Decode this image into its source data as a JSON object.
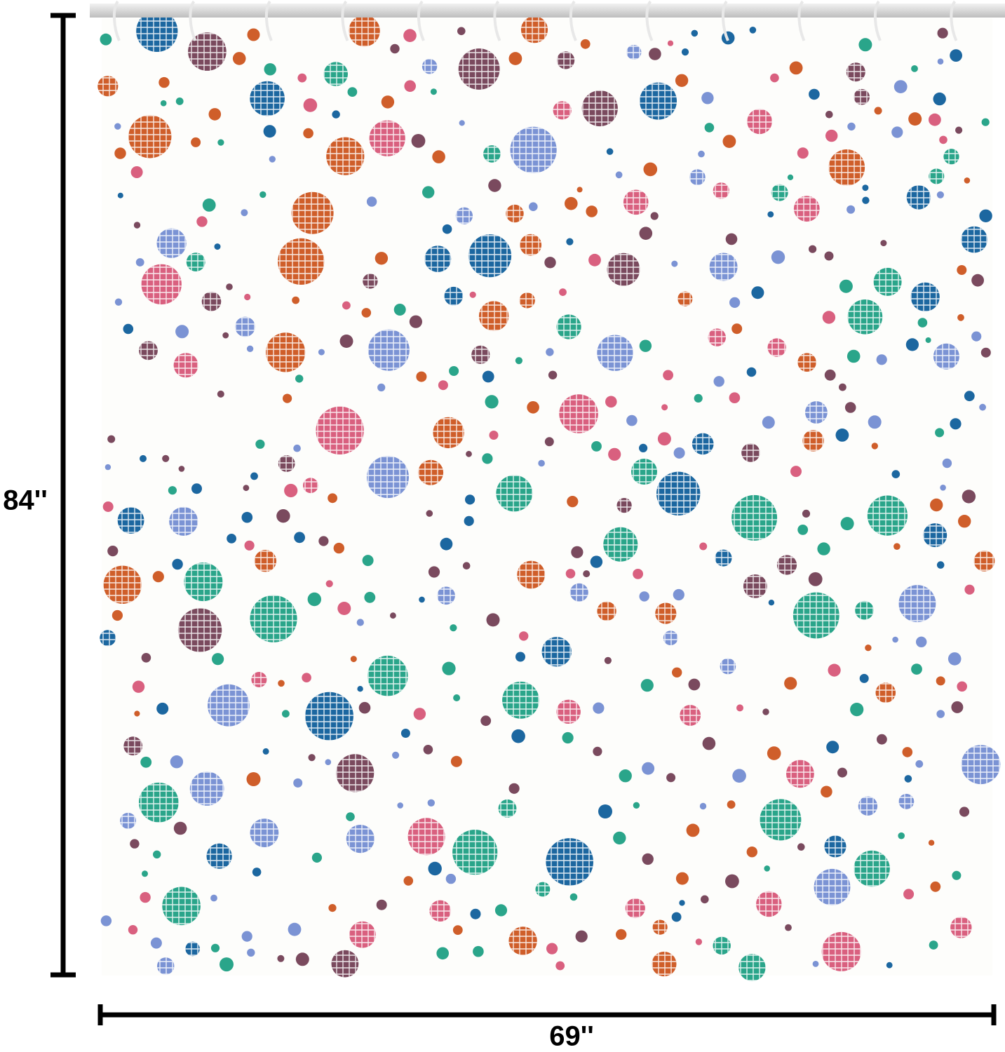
{
  "dimensions": {
    "height": "84''",
    "width": "69''"
  }
}
